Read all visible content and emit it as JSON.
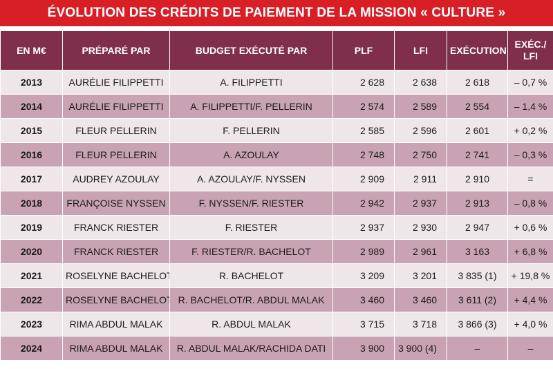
{
  "title": "ÉVOLUTION DES CRÉDITS DE PAIEMENT DE LA MISSION « CULTURE »",
  "headers": {
    "unit": "EN M€",
    "prepared_by": "PRÉPARÉ PAR",
    "executed_by": "BUDGET EXÉCUTÉ PAR",
    "plf": "PLF",
    "lfi": "LFI",
    "execution": "EXÉCUTION",
    "exec_lfi_line1": "EXÉC./",
    "exec_lfi_line2": "LFI"
  },
  "rows": [
    {
      "year": "2013",
      "prepared": "AURÉLIE FILIPPETTI",
      "executed": "A. FILIPPETTI",
      "plf": "2 628",
      "lfi": "2 638",
      "execution": "2 618",
      "ratio": "– 0,7 %"
    },
    {
      "year": "2014",
      "prepared": "AURÉLIE FILIPPETTI",
      "executed": "A. FILIPPETTI/F. PELLERIN",
      "plf": "2 574",
      "lfi": "2 589",
      "execution": "2 554",
      "ratio": "– 1,4 %"
    },
    {
      "year": "2015",
      "prepared": "FLEUR PELLERIN",
      "executed": "F. PELLERIN",
      "plf": "2 585",
      "lfi": "2 596",
      "execution": "2 601",
      "ratio": "+ 0,2 %"
    },
    {
      "year": "2016",
      "prepared": "FLEUR PELLERIN",
      "executed": "A. AZOULAY",
      "plf": "2 748",
      "lfi": "2 750",
      "execution": "2 741",
      "ratio": "– 0,3 %"
    },
    {
      "year": "2017",
      "prepared": "AUDREY AZOULAY",
      "executed": "A. AZOULAY/F. NYSSEN",
      "plf": "2 909",
      "lfi": "2 911",
      "execution": "2 910",
      "ratio": "="
    },
    {
      "year": "2018",
      "prepared": "FRANÇOISE NYSSEN",
      "executed": "F. NYSSEN/F. RIESTER",
      "plf": "2 942",
      "lfi": "2 937",
      "execution": "2 913",
      "ratio": "– 0,8 %"
    },
    {
      "year": "2019",
      "prepared": "FRANCK RIESTER",
      "executed": "F. RIESTER",
      "plf": "2 937",
      "lfi": "2 930",
      "execution": "2 947",
      "ratio": "+ 0,6 %"
    },
    {
      "year": "2020",
      "prepared": "FRANCK RIESTER",
      "executed": "F. RIESTER/R. BACHELOT",
      "plf": "2 989",
      "lfi": "2 961",
      "execution": "3 163",
      "ratio": "+ 6,8 %"
    },
    {
      "year": "2021",
      "prepared": "ROSELYNE BACHELOT",
      "executed": "R. BACHELOT",
      "plf": "3 209",
      "lfi": "3 201",
      "execution": "3 835 (1)",
      "ratio": "+ 19,8 %"
    },
    {
      "year": "2022",
      "prepared": "ROSELYNE BACHELOT",
      "executed": "R. BACHELOT/R. ABDUL MALAK",
      "plf": "3 460",
      "lfi": "3 460",
      "execution": "3 611 (2)",
      "ratio": "+ 4,4 %"
    },
    {
      "year": "2023",
      "prepared": "RIMA ABDUL MALAK",
      "executed": "R. ABDUL MALAK",
      "plf": "3 715",
      "lfi": "3 718",
      "execution": "3 866 (3)",
      "ratio": "+ 4,0 %"
    },
    {
      "year": "2024",
      "prepared": "RIMA ABDUL MALAK",
      "executed": "R. ABDUL MALAK/RACHIDA DATI",
      "plf": "3 900",
      "lfi": "3 900 (4)",
      "execution": "–",
      "ratio": "–"
    }
  ]
}
